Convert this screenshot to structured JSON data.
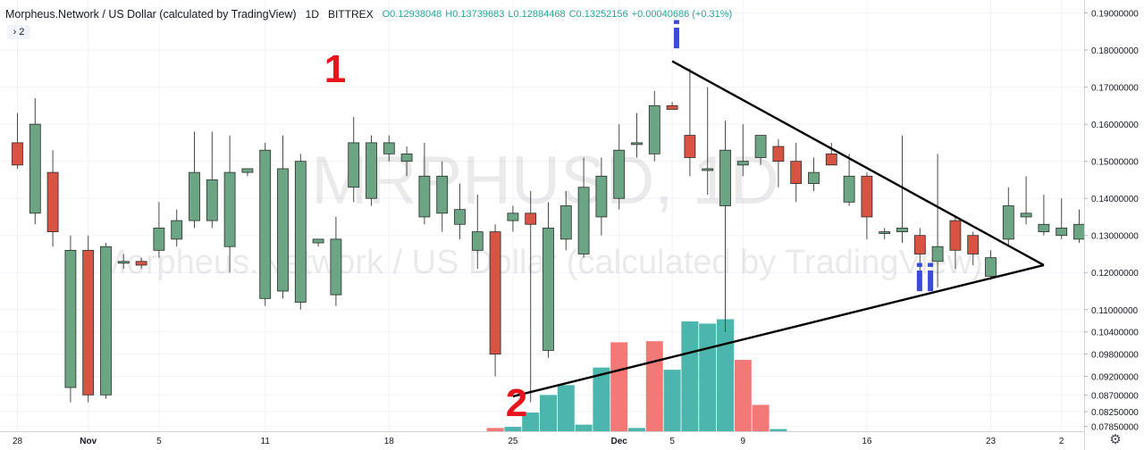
{
  "legend": {
    "title": "Morpheus.Network / US Dollar (calculated by TradingView)",
    "interval": "1D",
    "exchange": "BITTREX",
    "open": "O0.12938048",
    "high": "H0.13739683",
    "low": "L0.12884468",
    "close": "C0.13252156",
    "change": "+0.00040686 (+0.31%)"
  },
  "collapse_count": "2",
  "watermark": {
    "symbol": "MRPHUSD, 1D",
    "name": "Morpheus.Network / US Dollar (calculated by TradingView)"
  },
  "annotations": {
    "label_1": "1",
    "label_2": "2",
    "label_i": "i",
    "label_ii": "ii"
  },
  "colors": {
    "up": "#6ba583",
    "down": "#d75442",
    "vol_up": "#26a69a",
    "vol_down": "#ef5350",
    "red_label": "#e8141c",
    "blue_label": "#3a4bd8"
  },
  "chart_data": {
    "type": "candlestick",
    "price_axis": {
      "min": 0.0772,
      "max": 0.1935,
      "ticks": [
        "0.19000000",
        "0.18000000",
        "0.17000000",
        "0.16000000",
        "0.15000000",
        "0.14000000",
        "0.13000000",
        "0.12000000",
        "0.11000000",
        "0.10400000",
        "0.09800000",
        "0.09200000",
        "0.08700000",
        "0.08250000",
        "0.07850000"
      ]
    },
    "x_axis": {
      "labels": [
        {
          "i": 0,
          "text": "28"
        },
        {
          "i": 4,
          "text": "Nov"
        },
        {
          "i": 8,
          "text": "5"
        },
        {
          "i": 14,
          "text": "11"
        },
        {
          "i": 21,
          "text": "18"
        },
        {
          "i": 28,
          "text": "25"
        },
        {
          "i": 34,
          "text": "Dec"
        },
        {
          "i": 37,
          "text": "5"
        },
        {
          "i": 41,
          "text": "9"
        },
        {
          "i": 48,
          "text": "16"
        },
        {
          "i": 55,
          "text": "23"
        },
        {
          "i": 59,
          "text": "2"
        }
      ]
    },
    "candles": [
      [
        0.155,
        0.163,
        0.148,
        0.149
      ],
      [
        0.136,
        0.167,
        0.133,
        0.16
      ],
      [
        0.147,
        0.153,
        0.127,
        0.131
      ],
      [
        0.089,
        0.13,
        0.085,
        0.126
      ],
      [
        0.126,
        0.13,
        0.085,
        0.087
      ],
      [
        0.087,
        0.128,
        0.086,
        0.127
      ],
      [
        0.123,
        0.125,
        0.121,
        0.123
      ],
      [
        0.123,
        0.124,
        0.121,
        0.122
      ],
      [
        0.126,
        0.139,
        0.124,
        0.132
      ],
      [
        0.129,
        0.137,
        0.127,
        0.134
      ],
      [
        0.134,
        0.158,
        0.132,
        0.147
      ],
      [
        0.134,
        0.158,
        0.132,
        0.145
      ],
      [
        0.127,
        0.157,
        0.12,
        0.147
      ],
      [
        0.147,
        0.148,
        0.146,
        0.148
      ],
      [
        0.113,
        0.155,
        0.111,
        0.153
      ],
      [
        0.115,
        0.157,
        0.113,
        0.148
      ],
      [
        0.112,
        0.152,
        0.11,
        0.15
      ],
      [
        0.128,
        0.129,
        0.127,
        0.129
      ],
      [
        0.114,
        0.135,
        0.111,
        0.129
      ],
      [
        0.143,
        0.162,
        0.139,
        0.155
      ],
      [
        0.14,
        0.157,
        0.138,
        0.155
      ],
      [
        0.152,
        0.157,
        0.15,
        0.155
      ],
      [
        0.15,
        0.154,
        0.146,
        0.152
      ],
      [
        0.135,
        0.155,
        0.133,
        0.146
      ],
      [
        0.136,
        0.15,
        0.131,
        0.146
      ],
      [
        0.133,
        0.144,
        0.129,
        0.137
      ],
      [
        0.126,
        0.141,
        0.121,
        0.131
      ],
      [
        0.131,
        0.133,
        0.092,
        0.098
      ],
      [
        0.134,
        0.138,
        0.131,
        0.136
      ],
      [
        0.136,
        0.142,
        0.085,
        0.133
      ],
      [
        0.099,
        0.139,
        0.097,
        0.132
      ],
      [
        0.129,
        0.142,
        0.126,
        0.138
      ],
      [
        0.125,
        0.151,
        0.124,
        0.143
      ],
      [
        0.135,
        0.151,
        0.13,
        0.146
      ],
      [
        0.14,
        0.16,
        0.137,
        0.153
      ],
      [
        0.155,
        0.163,
        0.151,
        0.155
      ],
      [
        0.152,
        0.169,
        0.15,
        0.165
      ],
      [
        0.165,
        0.166,
        0.164,
        0.164
      ],
      [
        0.157,
        0.175,
        0.146,
        0.151
      ],
      [
        0.148,
        0.17,
        0.141,
        0.148
      ],
      [
        0.138,
        0.161,
        0.104,
        0.153
      ],
      [
        0.149,
        0.16,
        0.146,
        0.15
      ],
      [
        0.151,
        0.157,
        0.149,
        0.157
      ],
      [
        0.154,
        0.156,
        0.143,
        0.15
      ],
      [
        0.15,
        0.155,
        0.139,
        0.144
      ],
      [
        0.144,
        0.151,
        0.142,
        0.147
      ],
      [
        0.152,
        0.155,
        0.149,
        0.149
      ],
      [
        0.139,
        0.152,
        0.138,
        0.146
      ],
      [
        0.146,
        0.147,
        0.129,
        0.135
      ],
      [
        0.131,
        0.132,
        0.129,
        0.131
      ],
      [
        0.131,
        0.157,
        0.128,
        0.132
      ],
      [
        0.13,
        0.132,
        0.117,
        0.125
      ],
      [
        0.123,
        0.152,
        0.116,
        0.127
      ],
      [
        0.134,
        0.135,
        0.121,
        0.126
      ],
      [
        0.13,
        0.131,
        0.122,
        0.125
      ],
      [
        0.119,
        0.126,
        0.118,
        0.124
      ],
      [
        0.129,
        0.143,
        0.127,
        0.138
      ],
      [
        0.135,
        0.146,
        0.133,
        0.136
      ],
      [
        0.131,
        0.141,
        0.13,
        0.133
      ],
      [
        0.13,
        0.14,
        0.129,
        0.132
      ],
      [
        0.129,
        0.137,
        0.128,
        0.133
      ]
    ],
    "volume": [
      {
        "i": 27,
        "v": 0.03,
        "dir": "down"
      },
      {
        "i": 28,
        "v": 0.04,
        "dir": "up"
      },
      {
        "i": 29,
        "v": 0.17,
        "dir": "up"
      },
      {
        "i": 30,
        "v": 0.33,
        "dir": "up"
      },
      {
        "i": 31,
        "v": 0.42,
        "dir": "up"
      },
      {
        "i": 32,
        "v": 0.06,
        "dir": "up"
      },
      {
        "i": 33,
        "v": 0.58,
        "dir": "up"
      },
      {
        "i": 34,
        "v": 0.81,
        "dir": "down"
      },
      {
        "i": 35,
        "v": 0.03,
        "dir": "up"
      },
      {
        "i": 36,
        "v": 0.82,
        "dir": "down"
      },
      {
        "i": 37,
        "v": 0.56,
        "dir": "up"
      },
      {
        "i": 38,
        "v": 1.0,
        "dir": "up"
      },
      {
        "i": 39,
        "v": 0.98,
        "dir": "up"
      },
      {
        "i": 40,
        "v": 1.02,
        "dir": "up"
      },
      {
        "i": 41,
        "v": 0.65,
        "dir": "down"
      },
      {
        "i": 42,
        "v": 0.24,
        "dir": "down"
      },
      {
        "i": 43,
        "v": 0.02,
        "dir": "up"
      }
    ],
    "trendlines": [
      {
        "from": {
          "i": 37,
          "p": 0.177
        },
        "to": {
          "i": 58,
          "p": 0.122
        }
      },
      {
        "from": {
          "i": 28,
          "p": 0.0866
        },
        "to": {
          "i": 58,
          "p": 0.122
        }
      }
    ],
    "grid": true
  }
}
